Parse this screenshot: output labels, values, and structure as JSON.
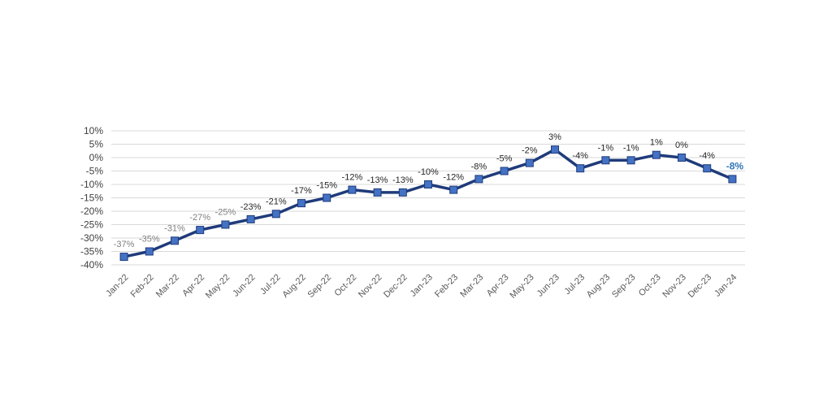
{
  "chart_data": {
    "type": "line",
    "title": "",
    "xlabel": "",
    "ylabel": "",
    "ylim": [
      -40,
      10
    ],
    "y_ticks": [
      10,
      5,
      0,
      -5,
      -10,
      -15,
      -20,
      -25,
      -30,
      -35,
      -40
    ],
    "y_tick_format": "percent",
    "grid": true,
    "legend": "none",
    "categories": [
      "Jan-22",
      "Feb-22",
      "Mar-22",
      "Apr-22",
      "May-22",
      "Jun-22",
      "Jul-22",
      "Aug-22",
      "Sep-22",
      "Oct-22",
      "Nov-22",
      "Dec-22",
      "Jan-23",
      "Feb-23",
      "Mar-23",
      "Apr-23",
      "May-23",
      "Jun-23",
      "Jul-23",
      "Aug-23",
      "Sep-23",
      "Oct-23",
      "Nov-23",
      "Dec-23",
      "Jan-24"
    ],
    "series": [
      {
        "values": [
          -37,
          -35,
          -31,
          -27,
          -25,
          -23,
          -21,
          -17,
          -15,
          -12,
          -13,
          -13,
          -10,
          -12,
          -8,
          -5,
          -2,
          3,
          -4,
          -1,
          -1,
          1,
          0,
          -4,
          -8
        ],
        "data_labels": [
          "-37%",
          "-35%",
          "-31%",
          "-27%",
          "-25%",
          "-23%",
          "-21%",
          "-17%",
          "-15%",
          "-12%",
          "-13%",
          "-13%",
          "-10%",
          "-12%",
          "-8%",
          "-5%",
          "-2%",
          "3%",
          "-4%",
          "-1%",
          "-1%",
          "1%",
          "0%",
          "-4%",
          "-8%"
        ]
      }
    ],
    "colors": {
      "line": "#1f3b7a",
      "marker_fill": "#4472c4",
      "marker_stroke": "#1f3b7a",
      "grid": "#d9d9d9",
      "last_label": "#2e75b6",
      "muted_label": "#7f7f7f",
      "label": "#262626"
    }
  }
}
